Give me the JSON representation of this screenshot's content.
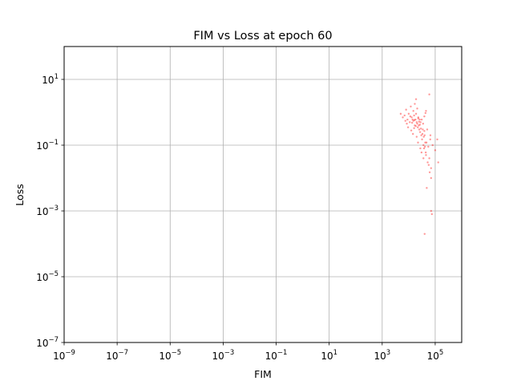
{
  "chart_data": {
    "type": "scatter",
    "title": "FIM vs Loss at epoch 60",
    "xlabel": "FIM",
    "ylabel": "Loss",
    "xscale": "log",
    "yscale": "log",
    "xlim": [
      1e-09,
      1000000.0
    ],
    "ylim": [
      1e-07,
      100
    ],
    "grid": true,
    "point_color": "#ff0000",
    "x_ticks": [
      {
        "base": "10",
        "exp": "−9"
      },
      {
        "base": "10",
        "exp": "−7"
      },
      {
        "base": "10",
        "exp": "−5"
      },
      {
        "base": "10",
        "exp": "−3"
      },
      {
        "base": "10",
        "exp": "−1"
      },
      {
        "base": "10",
        "exp": "1"
      },
      {
        "base": "10",
        "exp": "3"
      },
      {
        "base": "10",
        "exp": "5"
      }
    ],
    "y_ticks": [
      {
        "base": "10",
        "exp": "−7"
      },
      {
        "base": "10",
        "exp": "−5"
      },
      {
        "base": "10",
        "exp": "−3"
      },
      {
        "base": "10",
        "exp": "−1"
      },
      {
        "base": "10",
        "exp": "1"
      }
    ],
    "points": [
      [
        5000,
        0.9
      ],
      [
        6000,
        0.7
      ],
      [
        7000,
        0.8
      ],
      [
        8000,
        1.2
      ],
      [
        9000,
        0.6
      ],
      [
        10000,
        0.9
      ],
      [
        11000,
        0.5
      ],
      [
        12000,
        1.5
      ],
      [
        13000,
        0.7
      ],
      [
        14000,
        0.6
      ],
      [
        15000,
        1.1
      ],
      [
        16000,
        0.8
      ],
      [
        17000,
        0.4
      ],
      [
        18000,
        0.6
      ],
      [
        19000,
        0.9
      ],
      [
        20000,
        0.5
      ],
      [
        21000,
        1.3
      ],
      [
        22000,
        0.35
      ],
      [
        23000,
        0.7
      ],
      [
        24000,
        0.4
      ],
      [
        25000,
        0.3
      ],
      [
        26000,
        0.6
      ],
      [
        27000,
        0.25
      ],
      [
        28000,
        0.5
      ],
      [
        30000,
        0.2
      ],
      [
        32000,
        0.15
      ],
      [
        34000,
        0.3
      ],
      [
        36000,
        0.1
      ],
      [
        38000,
        0.08
      ],
      [
        40000,
        0.2
      ],
      [
        42000,
        0.12
      ],
      [
        45000,
        0.05
      ],
      [
        50000,
        0.3
      ],
      [
        55000,
        0.09
      ],
      [
        60000,
        0.04
      ],
      [
        65000,
        0.15
      ],
      [
        70000,
        0.02
      ],
      [
        80000,
        0.1
      ],
      [
        100000,
        0.07
      ],
      [
        120000,
        0.15
      ],
      [
        130000,
        0.03
      ],
      [
        15000,
        0.55
      ],
      [
        17000,
        1.8
      ],
      [
        19000,
        2.5
      ],
      [
        21000,
        0.45
      ],
      [
        23000,
        0.65
      ],
      [
        11500,
        0.75
      ],
      [
        13500,
        0.48
      ],
      [
        16500,
        0.58
      ],
      [
        18500,
        0.38
      ],
      [
        24500,
        0.52
      ],
      [
        26500,
        0.42
      ],
      [
        29000,
        0.32
      ],
      [
        31000,
        0.6
      ],
      [
        33000,
        0.22
      ],
      [
        35000,
        0.45
      ],
      [
        37000,
        0.18
      ],
      [
        39000,
        0.27
      ],
      [
        41000,
        0.09
      ],
      [
        44000,
        0.06
      ],
      [
        47000,
        0.12
      ],
      [
        52000,
        0.03
      ],
      [
        57000,
        0.025
      ],
      [
        62000,
        0.015
      ],
      [
        66000,
        0.2
      ],
      [
        70000,
        0.01
      ],
      [
        48000,
        0.005
      ],
      [
        70000,
        0.001
      ],
      [
        75000,
        0.0008
      ],
      [
        40000,
        0.0002
      ],
      [
        9500,
        0.35
      ],
      [
        12500,
        0.28
      ],
      [
        14500,
        0.22
      ],
      [
        16000,
        0.33
      ],
      [
        20000,
        0.18
      ],
      [
        22500,
        0.12
      ],
      [
        27500,
        0.08
      ],
      [
        30500,
        0.06
      ],
      [
        36000,
        0.04
      ],
      [
        60000,
        3.5
      ],
      [
        45000,
        1.1
      ],
      [
        43000,
        0.95
      ],
      [
        39000,
        0.75
      ],
      [
        7500,
        0.55
      ],
      [
        8500,
        0.45
      ]
    ]
  }
}
